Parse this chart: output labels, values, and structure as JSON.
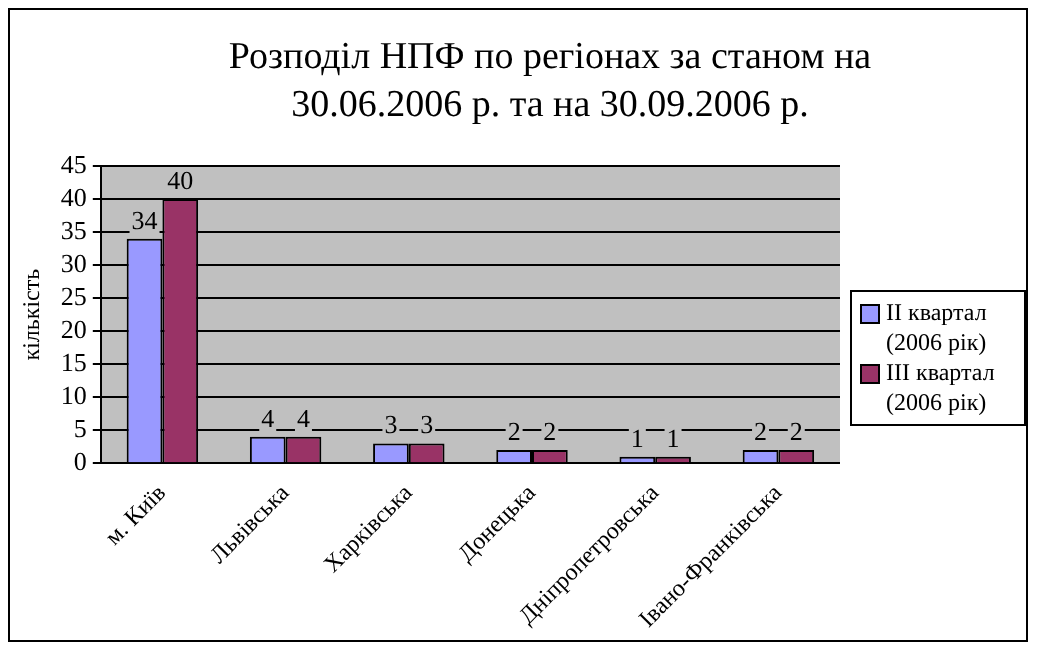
{
  "chart_data": {
    "type": "bar",
    "title": "Розподіл НПФ по регіонах за станом на 30.06.2006 р. та на 30.09.2006 р.",
    "ylabel": "кількість",
    "categories": [
      "м. Київ",
      "Львівська",
      "Харківська",
      "Донецька",
      "Дніпропетровська",
      "Івано-Франківська"
    ],
    "series": [
      {
        "name": "II квартал (2006 рік)",
        "color": "#9999ff",
        "values": [
          34,
          4,
          3,
          2,
          1,
          2
        ]
      },
      {
        "name": "III квартал (2006 рік)",
        "color": "#993366",
        "values": [
          40,
          4,
          3,
          2,
          1,
          2
        ]
      }
    ],
    "ylim": [
      0,
      45
    ],
    "yticks": [
      0,
      5,
      10,
      15,
      20,
      25,
      30,
      35,
      40,
      45
    ],
    "grid": "y",
    "legend": "right",
    "data_labels": true
  }
}
